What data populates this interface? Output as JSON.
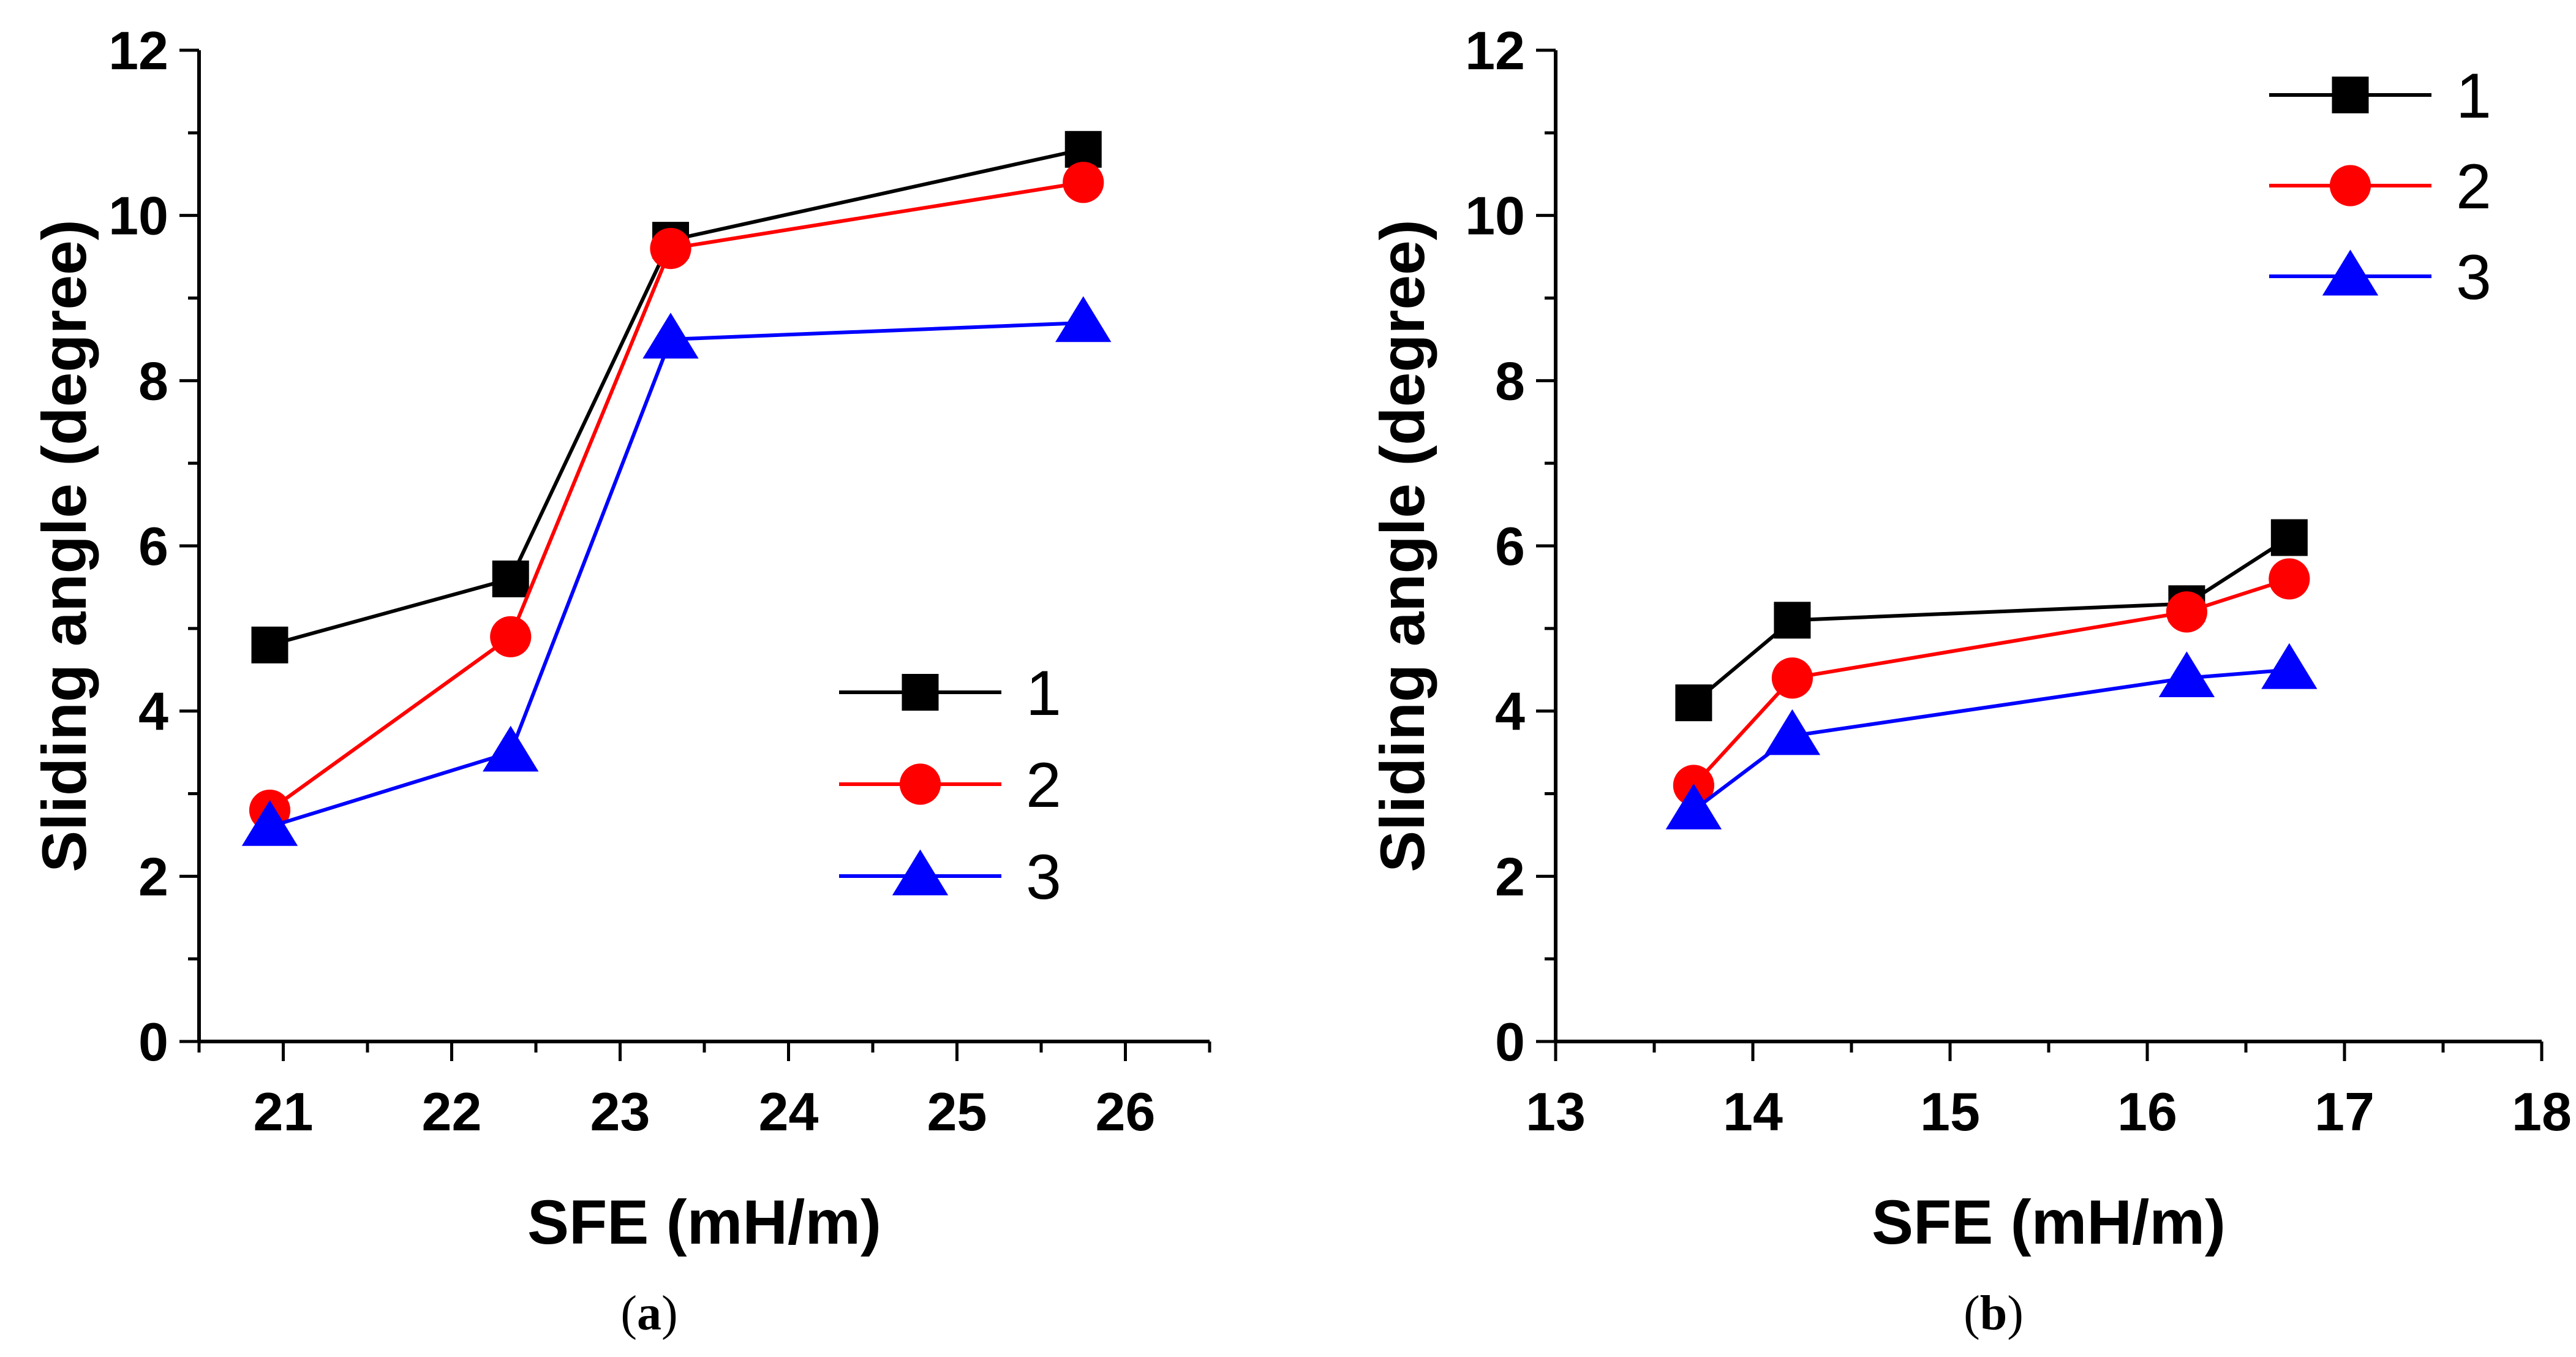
{
  "chart_data": [
    {
      "panel": "a",
      "type": "line",
      "caption": {
        "open": "(",
        "letter": "a",
        "close": ")"
      },
      "title": "",
      "xlabel": "SFE (mH/m)",
      "ylabel": "Sliding angle (degree)",
      "xlim": [
        20.5,
        26.5
      ],
      "ylim": [
        0,
        12
      ],
      "xticks": [
        21,
        22,
        23,
        24,
        25,
        26
      ],
      "yticks": [
        0,
        2,
        4,
        6,
        8,
        10,
        12
      ],
      "legend_position": "lower-right",
      "series": [
        {
          "name": "1",
          "marker": "square",
          "color": "#000000",
          "x": [
            20.92,
            22.35,
            23.3,
            25.75
          ],
          "y": [
            4.8,
            5.6,
            9.7,
            10.8
          ]
        },
        {
          "name": "2",
          "marker": "circle",
          "color": "#ff0000",
          "x": [
            20.92,
            22.35,
            23.3,
            25.75
          ],
          "y": [
            2.8,
            4.9,
            9.6,
            10.4
          ]
        },
        {
          "name": "3",
          "marker": "triangle",
          "color": "#0000ff",
          "x": [
            20.92,
            22.35,
            23.3,
            25.75
          ],
          "y": [
            2.6,
            3.5,
            8.5,
            8.7
          ]
        }
      ]
    },
    {
      "panel": "b",
      "type": "line",
      "caption": {
        "open": "(",
        "letter": "b",
        "close": ")"
      },
      "title": "",
      "xlabel": "SFE (mH/m)",
      "ylabel": "Sliding angle (degree)",
      "xlim": [
        13,
        18
      ],
      "ylim": [
        0,
        12
      ],
      "xticks": [
        13,
        14,
        15,
        16,
        17,
        18
      ],
      "yticks": [
        0,
        2,
        4,
        6,
        8,
        10,
        12
      ],
      "legend_position": "top-right",
      "series": [
        {
          "name": "1",
          "marker": "square",
          "color": "#000000",
          "x": [
            13.7,
            14.2,
            16.2,
            16.72
          ],
          "y": [
            4.1,
            5.1,
            5.3,
            6.1
          ]
        },
        {
          "name": "2",
          "marker": "circle",
          "color": "#ff0000",
          "x": [
            13.7,
            14.2,
            16.2,
            16.72
          ],
          "y": [
            3.1,
            4.4,
            5.2,
            5.6
          ]
        },
        {
          "name": "3",
          "marker": "triangle",
          "color": "#0000ff",
          "x": [
            13.7,
            14.2,
            16.2,
            16.72
          ],
          "y": [
            2.8,
            3.7,
            4.4,
            4.5
          ]
        }
      ]
    }
  ]
}
